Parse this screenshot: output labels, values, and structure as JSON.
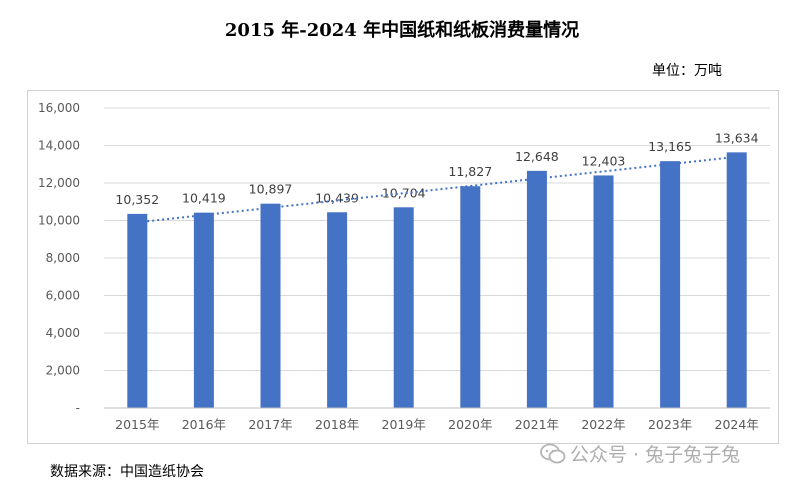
{
  "header": {
    "title": "2015 年-2024 年中国纸和纸板消费量情况",
    "unit": "单位：万吨"
  },
  "footer": {
    "source": "数据来源：中国造纸协会",
    "watermark": "公众号 · 兔子兔子兔"
  },
  "chart_data": {
    "type": "bar",
    "title": "2015 年-2024 年中国纸和纸板消费量情况",
    "categories": [
      "2015年",
      "2016年",
      "2017年",
      "2018年",
      "2019年",
      "2020年",
      "2021年",
      "2022年",
      "2023年",
      "2024年"
    ],
    "values": [
      10352,
      10419,
      10897,
      10439,
      10704,
      11827,
      12648,
      12403,
      13165,
      13634
    ],
    "value_labels": [
      "10,352",
      "10,419",
      "10,897",
      "10,439",
      "10,704",
      "11,827",
      "12,648",
      "12,403",
      "13,165",
      "13,634"
    ],
    "ylim": [
      0,
      16000
    ],
    "yticks": [
      0,
      2000,
      4000,
      6000,
      8000,
      10000,
      12000,
      14000,
      16000
    ],
    "ytick_labels": [
      "-",
      "2,000",
      "4,000",
      "6,000",
      "8,000",
      "10,000",
      "12,000",
      "14,000",
      "16,000"
    ],
    "trendline": "linear",
    "grid": true,
    "legend": "none",
    "colors": {
      "bar": "#4472C4",
      "trend": "#4472C4",
      "grid": "#d9d9d9"
    }
  }
}
